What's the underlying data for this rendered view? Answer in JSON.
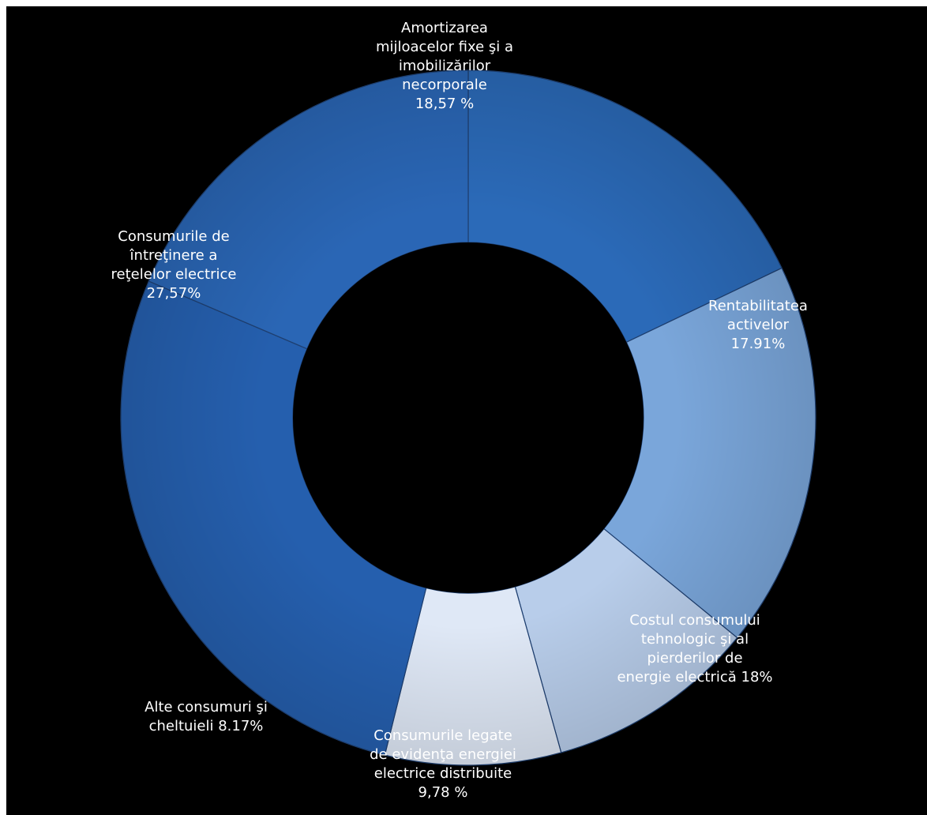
{
  "chart_data": {
    "type": "pie",
    "variant": "donut",
    "title": "",
    "legend": "none",
    "start_angle_deg": -90,
    "direction": "clockwise",
    "slices": [
      {
        "label_lines": [
          "Rentabilitatea",
          "activelor",
          "17.91%"
        ],
        "value": 17.91,
        "color": "#2b6ab8"
      },
      {
        "label_lines": [
          "Costul consumului",
          "tehnologic şi al",
          "pierderilor de",
          "energie electrică 18%"
        ],
        "value": 18.0,
        "color": "#7aa6da"
      },
      {
        "label_lines": [
          "Consumurile legate",
          "de evidenţa energiei",
          "electrice distribuite",
          "9,78 %"
        ],
        "value": 9.78,
        "color": "#b8cdea"
      },
      {
        "label_lines": [
          "Alte consumuri şi",
          "cheltuieli 8.17%"
        ],
        "value": 8.17,
        "color": "#dfe8f6"
      },
      {
        "label_lines": [
          "Consumurile de",
          "întreţinere a",
          "reţelelor electrice",
          "27,57%"
        ],
        "value": 27.57,
        "color": "#255fae"
      },
      {
        "label_lines": [
          "Amortizarea",
          "mijloacelor fixe şi a",
          "imobilizărilor",
          "necorporale",
          "18,57 %"
        ],
        "value": 18.57,
        "color": "#2a66b5"
      }
    ]
  }
}
